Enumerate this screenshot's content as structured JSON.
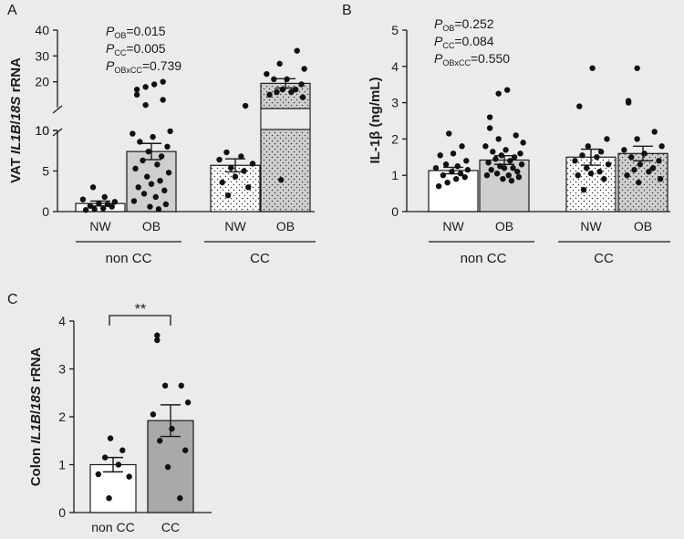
{
  "colors": {
    "background": "#ebebeb",
    "white_bar": "#ffffff",
    "ob_bar": "#cfcfcf",
    "cc_bar": "#a9a9ab",
    "ink": "#1a1a1a"
  },
  "chart_data": [
    {
      "panel": "A",
      "type": "bar",
      "broken_axis": true,
      "ylabel_parts": [
        "VAT ",
        "IL1B",
        "/",
        "18S",
        " rRNA"
      ],
      "y_lower": {
        "ylim": [
          0,
          10
        ],
        "ticks": [
          "0",
          "5",
          "10"
        ]
      },
      "y_upper": {
        "ylim": [
          10,
          40
        ],
        "ticks": [
          "10",
          "20",
          "30",
          "40"
        ]
      },
      "stats": [
        {
          "sym": "P",
          "sub": "OB",
          "val": "=0.015"
        },
        {
          "sym": "P",
          "sub": "CC",
          "val": "=0.005"
        },
        {
          "sym": "P",
          "sub": "OBxCC",
          "val": "=0.739"
        }
      ],
      "groups": [
        {
          "label": "non CC",
          "categories": [
            "NW",
            "OB"
          ]
        },
        {
          "label": "CC",
          "categories": [
            "NW",
            "OB"
          ]
        }
      ],
      "bars": [
        {
          "group": "non CC",
          "category": "NW",
          "mean": 1.0,
          "sem": 0.3,
          "fill": "white",
          "pattern": false,
          "points": [
            0.2,
            0.3,
            0.4,
            0.6,
            0.7,
            0.9,
            1.0,
            1.2,
            1.5,
            1.8,
            3.0
          ]
        },
        {
          "group": "non CC",
          "category": "OB",
          "mean": 7.4,
          "sem": 1.0,
          "fill": "light",
          "pattern": false,
          "points": [
            0.3,
            0.6,
            0.9,
            1.3,
            1.8,
            2.2,
            2.6,
            3.0,
            3.4,
            3.8,
            4.3,
            4.8,
            5.3,
            5.8,
            6.3,
            6.8,
            7.4,
            8.0,
            8.6,
            9.2,
            9.6,
            9.9,
            11,
            13,
            15,
            17,
            18,
            19,
            20
          ]
        },
        {
          "group": "CC",
          "category": "NW",
          "mean": 5.7,
          "sem": 0.8,
          "fill": "white",
          "pattern": true,
          "points": [
            2.0,
            3.0,
            3.6,
            4.3,
            5.0,
            5.4,
            5.9,
            6.4,
            6.8,
            7.3,
            10.7
          ]
        },
        {
          "group": "CC",
          "category": "OB",
          "mean": 19.4,
          "sem": 1.8,
          "fill": "light",
          "pattern": true,
          "points": [
            3.9,
            14,
            15,
            16,
            16,
            17,
            17,
            19,
            21,
            21,
            23,
            25,
            27,
            32
          ]
        }
      ]
    },
    {
      "panel": "B",
      "type": "bar",
      "ylabel": "IL-1β (ng/mL)",
      "ylim": [
        0,
        5
      ],
      "yticks": [
        "0",
        "1",
        "2",
        "3",
        "4",
        "5"
      ],
      "stats": [
        {
          "sym": "P",
          "sub": "OB",
          "val": "=0.252"
        },
        {
          "sym": "P",
          "sub": "CC",
          "val": "=0.084"
        },
        {
          "sym": "P",
          "sub": "OBxCC",
          "val": "=0.550"
        }
      ],
      "groups": [
        {
          "label": "non CC",
          "categories": [
            "NW",
            "OB"
          ]
        },
        {
          "label": "CC",
          "categories": [
            "NW",
            "OB"
          ]
        }
      ],
      "bars": [
        {
          "group": "non CC",
          "category": "NW",
          "mean": 1.13,
          "sem": 0.09,
          "fill": "white",
          "pattern": false,
          "points": [
            0.7,
            0.8,
            0.9,
            0.95,
            1.0,
            1.05,
            1.1,
            1.15,
            1.2,
            1.25,
            1.3,
            1.4,
            1.55,
            1.6,
            1.8,
            2.15
          ]
        },
        {
          "group": "non CC",
          "category": "OB",
          "mean": 1.42,
          "sem": 0.12,
          "fill": "light",
          "pattern": false,
          "points": [
            0.85,
            0.9,
            0.95,
            1.0,
            1.0,
            1.05,
            1.1,
            1.15,
            1.2,
            1.2,
            1.25,
            1.3,
            1.35,
            1.4,
            1.45,
            1.5,
            1.55,
            1.6,
            1.65,
            1.7,
            1.8,
            1.9,
            2.0,
            2.1,
            2.3,
            2.6,
            3.25,
            3.35
          ]
        },
        {
          "group": "CC",
          "category": "NW",
          "mean": 1.5,
          "sem": 0.22,
          "fill": "white",
          "pattern": true,
          "points": [
            0.6,
            0.9,
            1.0,
            1.05,
            1.1,
            1.2,
            1.3,
            1.4,
            1.5,
            1.55,
            1.65,
            1.8,
            2.0,
            2.9,
            3.95
          ]
        },
        {
          "group": "CC",
          "category": "OB",
          "mean": 1.6,
          "sem": 0.2,
          "fill": "light",
          "pattern": true,
          "points": [
            0.8,
            0.9,
            1.0,
            1.1,
            1.15,
            1.2,
            1.3,
            1.4,
            1.5,
            1.6,
            1.7,
            1.8,
            2.0,
            2.2,
            3.0,
            3.05,
            3.95
          ]
        }
      ]
    },
    {
      "panel": "C",
      "type": "bar",
      "ylabel_parts": [
        "Colon ",
        "IL1B",
        "/",
        "18S",
        " rRNA"
      ],
      "ylim": [
        0,
        4
      ],
      "yticks": [
        "0",
        "1",
        "2",
        "3",
        "4"
      ],
      "significance": "**",
      "bars": [
        {
          "category": "non CC",
          "mean": 1.0,
          "sem": 0.15,
          "fill": "white",
          "points": [
            0.3,
            0.75,
            0.8,
            1.0,
            1.15,
            1.3,
            1.55
          ]
        },
        {
          "category": "CC",
          "mean": 1.92,
          "sem": 0.33,
          "fill": "dark",
          "points": [
            0.3,
            0.95,
            1.3,
            1.5,
            1.75,
            2.05,
            2.3,
            2.65,
            2.65,
            3.6,
            3.7
          ]
        }
      ]
    }
  ]
}
